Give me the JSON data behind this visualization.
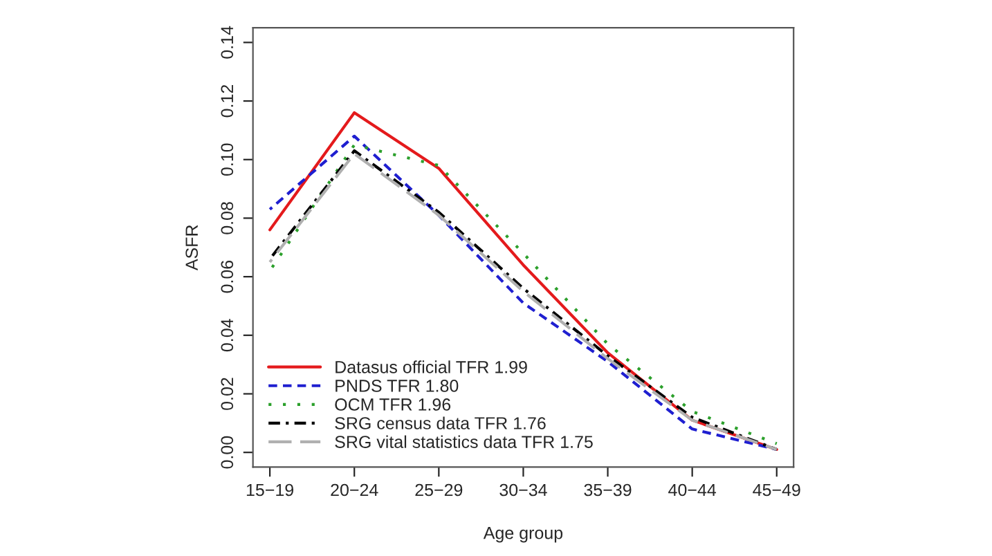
{
  "chart_data": {
    "type": "line",
    "xlabel": "Age group",
    "ylabel": "ASFR",
    "categories": [
      "15−19",
      "20−24",
      "25−29",
      "30−34",
      "35−39",
      "40−44",
      "45−49"
    ],
    "series": [
      {
        "name": "Datasus official TFR 1.99",
        "color": "#e41a1c",
        "line_style": "solid",
        "values": [
          0.076,
          0.116,
          0.097,
          0.064,
          0.034,
          0.011,
          0.001
        ]
      },
      {
        "name": "PNDS TFR 1.80",
        "color": "#1f1fd0",
        "line_style": "dashed",
        "values": [
          0.083,
          0.108,
          0.081,
          0.051,
          0.031,
          0.008,
          0.001
        ]
      },
      {
        "name": "OCM TFR 1.96",
        "color": "#2ca02c",
        "line_style": "dotted",
        "values": [
          0.062,
          0.105,
          0.098,
          0.068,
          0.037,
          0.014,
          0.003
        ]
      },
      {
        "name": "SRG census data TFR 1.76",
        "color": "#000000",
        "line_style": "dashdot",
        "values": [
          0.066,
          0.103,
          0.082,
          0.056,
          0.033,
          0.012,
          0.001
        ]
      },
      {
        "name": "SRG vital statistics data TFR 1.75",
        "color": "#b0b0b0",
        "line_style": "longdash",
        "values": [
          0.065,
          0.102,
          0.081,
          0.055,
          0.032,
          0.011,
          0.001
        ]
      }
    ],
    "ylim": [
      -0.005,
      0.145
    ],
    "yticks": [
      {
        "value": 0,
        "label": "0.00"
      },
      {
        "value": 0.02,
        "label": "0.02"
      },
      {
        "value": 0.04,
        "label": "0.04"
      },
      {
        "value": 0.06,
        "label": "0.06"
      },
      {
        "value": 0.08,
        "label": "0.08"
      },
      {
        "value": 0.1,
        "label": "0.10"
      },
      {
        "value": 0.12,
        "label": "0.12"
      },
      {
        "value": 0.14,
        "label": "0.14"
      }
    ],
    "grid": false,
    "legend": "bottom left"
  }
}
